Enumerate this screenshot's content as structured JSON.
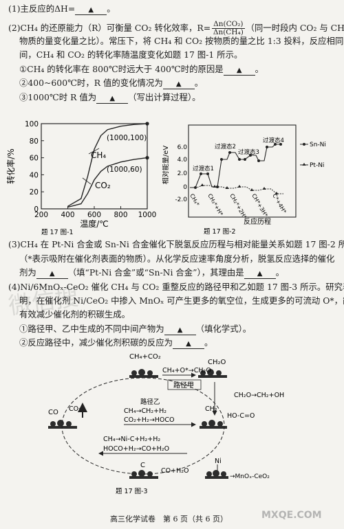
{
  "questions": {
    "q1": "(1)主反应的ΔH=",
    "q2_line1_a": "(2)CH₄ 的还原能力（R）可衡量 CO₂ 转化效率，R=",
    "q2_frac_num": "Δn(CO₂)",
    "q2_frac_den": "Δn(CH₄)",
    "q2_line1_b": "（同一时段内 CO₂ 与 CH₄ 的",
    "q2_line2": "物质的量变化量之比）。常压下，将 CH₄ 和 CO₂ 按物质的量之比 1:3 投料，反应相同时",
    "q2_line3": "间，CH₄ 和 CO₂ 的转化率随温度变化如题 17 图-1 所示。",
    "q2_sub1": "①CH₄ 的转化率在 800℃时远大于 400℃时的原因是",
    "q2_sub2": "②400~600℃时，R 值的变化情况为",
    "q2_sub3_a": "③1000℃时 R 值为",
    "q2_sub3_b": "（写出计算过程）。",
    "q3_line1": "(3)CH₄ 在 Pt-Ni 合金或 Sn-Ni 合金催化下脱氢反应历程与相对能量关系如题 17 图-2 所示",
    "q3_line2": "（*表示吸附在催化剂表面的物质）。从化学反应速率角度分析，脱氢反应选择的催化",
    "q3_line3_a": "剂为",
    "q3_line3_b": "（填“Pt-Ni 合金”或“Sn-Ni 合金”），其理由是",
    "q4_line1": "(4)Ni/6MnOₓ-CeO₂ 催化 CH₄ 与 CO₂ 重整反应的路径甲和乙如题 17 图-3 所示。研究表",
    "q4_line2": "明，在催化剂 Ni/CeO₂ 中掺入 MnOₓ 可产生更多的氧空位，生成更多的可流动 O*，能",
    "q4_line3": "有效减少催化剂的积碳生成。",
    "q4_sub1_a": "①路径甲、乙中生成的不同中间产物为",
    "q4_sub1_b": "（填化学式）。",
    "q4_sub2": "②反应路径中，减少催化剂积碳的反应为",
    "blank_mark": "▲",
    "period": "。"
  },
  "fig1": {
    "ylabel": "转化率/%",
    "xlabel": "温度/℃",
    "caption": "题 17 图-1",
    "curve_ch4_label": "CH₄",
    "curve_co2_label": "CO₂",
    "point_ch4_label": "(1000,100)",
    "point_co2_label": "(1000,60)",
    "x_ticks": [
      "200",
      "400",
      "600",
      "800",
      "1000"
    ],
    "y_ticks": [
      "0",
      "20",
      "40",
      "60",
      "80",
      "100"
    ]
  },
  "chart_data": {
    "type": "line",
    "xlabel": "温度/℃",
    "ylabel": "转化率/%",
    "xlim": [
      200,
      1000
    ],
    "ylim": [
      0,
      100
    ],
    "series": [
      {
        "name": "CH₄",
        "x": [
          400,
          500,
          550,
          600,
          650,
          700,
          800,
          900,
          1000
        ],
        "y": [
          3,
          12,
          38,
          70,
          86,
          93,
          97,
          99,
          100
        ]
      },
      {
        "name": "CO₂",
        "x": [
          400,
          500,
          550,
          600,
          650,
          700,
          800,
          900,
          1000
        ],
        "y": [
          2,
          6,
          18,
          34,
          44,
          50,
          55,
          58,
          60
        ]
      }
    ],
    "annotations": [
      "(1000,100)",
      "(1000,60)"
    ]
  },
  "fig2": {
    "ylabel": "相对能量/eV",
    "xlabel": "反应历程",
    "caption": "题 17 图-2",
    "legend": [
      "Sn-Ni",
      "Pt-Ni"
    ],
    "ts_labels": [
      "过渡态1",
      "过渡态2",
      "过渡态3",
      "过渡态4"
    ],
    "species": [
      "CH₄*",
      "CH₃*+H*",
      "CH₂*+2H*",
      "CH*+3H*",
      "C*+4H*"
    ],
    "y_ticks": [
      "6.0",
      "4.0",
      "2.0",
      "0",
      "-2.0"
    ]
  },
  "fig3": {
    "caption": "题 17 图-3",
    "top_reactant": "CH₄+CO₂",
    "path_jia_reaction": "CH₄+O*→CH₂O",
    "product_ch2o": "CH₂O",
    "path_jia_label": "路径甲",
    "path_yi_label": "路径乙",
    "path_yi_reactions": [
      "CH₄→CH₂+H₂",
      "CO₂+H₂→HOCO"
    ],
    "right_reaction": "CH₂O→CH₂+OH",
    "right_species_ch2": "CH₂",
    "right_species_hoco": "HO-C=O",
    "left_species_co": "CO",
    "left_species_co2": "CO₂",
    "center_reactions": [
      "CH₄→Ni-C+H₂+H₂",
      "HOCO+H₂→CO+H₂O"
    ],
    "bottom_c": "C",
    "bottom_products": "CO+H₂O",
    "ni_label": "Ni",
    "legend_mnox": "→MnOₓ-CeO₂"
  },
  "footer": "高三化学试卷　第 6 页（共 6 页）",
  "watermark_left": "微信搜",
  "watermark_right": "MXQE.COM"
}
